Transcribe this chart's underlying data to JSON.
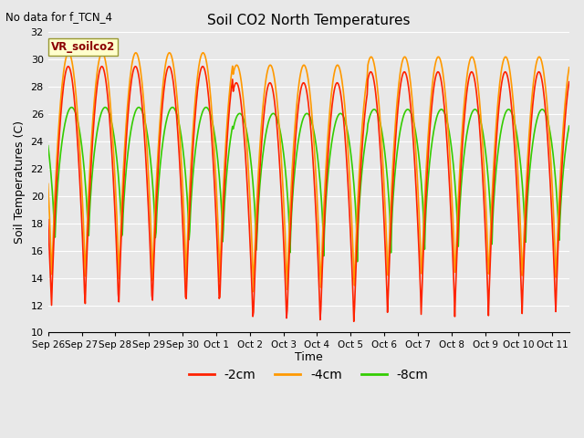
{
  "title": "Soil CO2 North Temperatures",
  "subtitle": "No data for f_TCN_4",
  "ylabel": "Soil Temperatures (C)",
  "xlabel": "Time",
  "ylim": [
    10,
    32
  ],
  "yticks": [
    10,
    12,
    14,
    16,
    18,
    20,
    22,
    24,
    26,
    28,
    30,
    32
  ],
  "bg_color": "#e8e8e8",
  "grid_color": "white",
  "colors": {
    "2cm": "#ff2200",
    "4cm": "#ff9900",
    "8cm": "#33cc00"
  },
  "legend_label": "VR_soilco2",
  "x_tick_labels": [
    "Sep 26",
    "Sep 27",
    "Sep 28",
    "Sep 29",
    "Sep 30",
    "Oct 1",
    "Oct 2",
    "Oct 3",
    "Oct 4",
    "Oct 5",
    "Oct 6",
    "Oct 7",
    "Oct 8",
    "Oct 9",
    "Oct 10",
    "Oct 11"
  ],
  "n_days": 15.5,
  "samples_per_day": 48
}
